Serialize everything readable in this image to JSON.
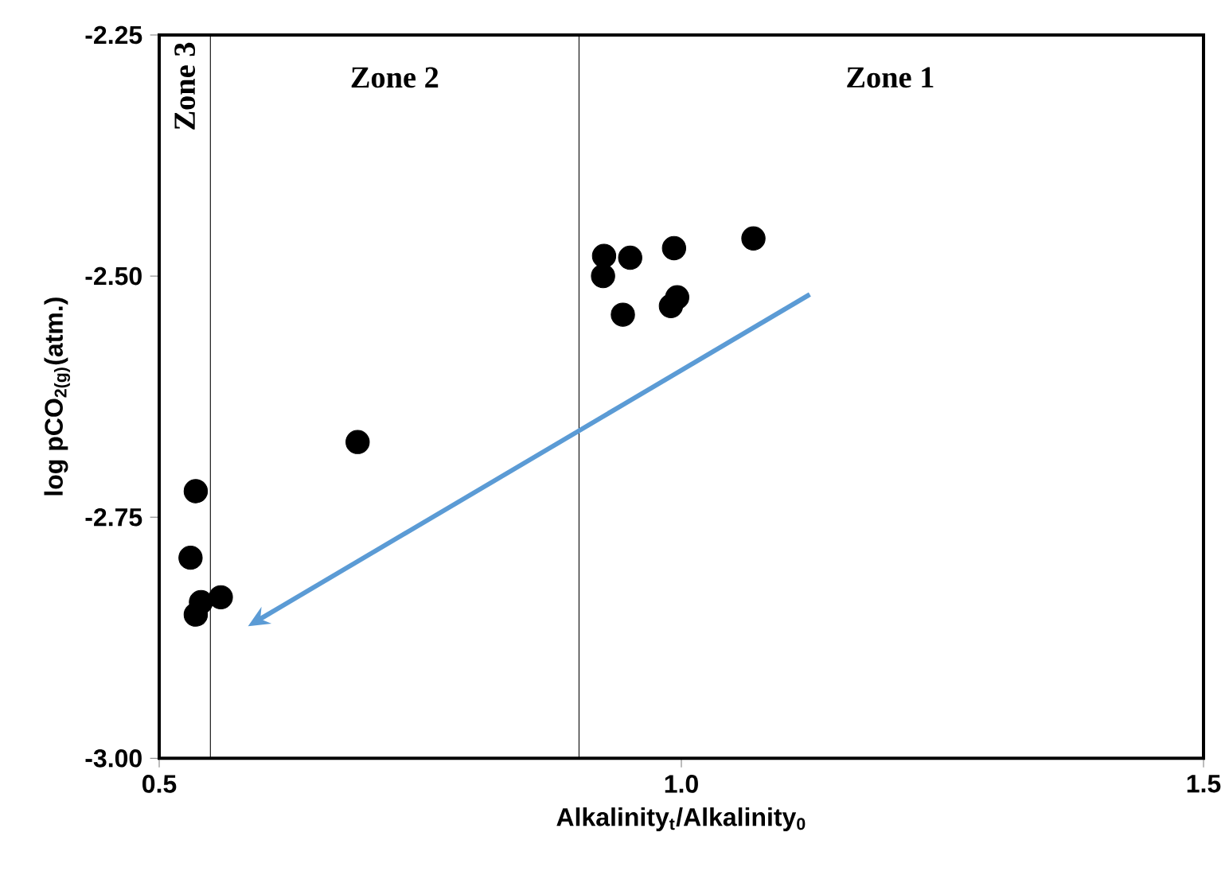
{
  "chart_data": {
    "type": "scatter",
    "xlabel": "Alkalinity$_{t}$/Alkalinity$_{0}$",
    "ylabel": "log pCO$_{2(g)}$(atm.)",
    "x": [
      0.926,
      0.951,
      0.925,
      0.993,
      1.069,
      0.944,
      0.996,
      0.99,
      0.69,
      0.535,
      0.53,
      0.559,
      0.54,
      0.535
    ],
    "values": [
      -2.479,
      -2.481,
      -2.5,
      -2.471,
      -2.461,
      -2.54,
      -2.522,
      -2.531,
      -2.672,
      -2.723,
      -2.792,
      -2.833,
      -2.838,
      -2.851
    ],
    "color": "#000000",
    "marker": "circle",
    "grid": false,
    "xlim": [
      0.5,
      1.5
    ],
    "ylim": [
      -3.0,
      -2.25
    ],
    "xticks": [
      0.5,
      {
        "value": 1.0,
        "label": "1.0"
      },
      1.5
    ],
    "yticks": [
      {
        "value": -3.0,
        "label": "-3.00"
      },
      {
        "value": -2.75,
        "label": "-2.75"
      },
      {
        "value": -2.5,
        "label": "-2.50"
      },
      {
        "value": -2.25,
        "label": "-2.25"
      }
    ],
    "ref_lines": [
      {
        "axis": "x",
        "value": 0.549,
        "color": "#000000"
      },
      {
        "axis": "x",
        "value": 0.902,
        "color": "#000000"
      }
    ],
    "annotations": [
      "Zone 3",
      "Zone 2",
      "Zone 1"
    ]
  }
}
